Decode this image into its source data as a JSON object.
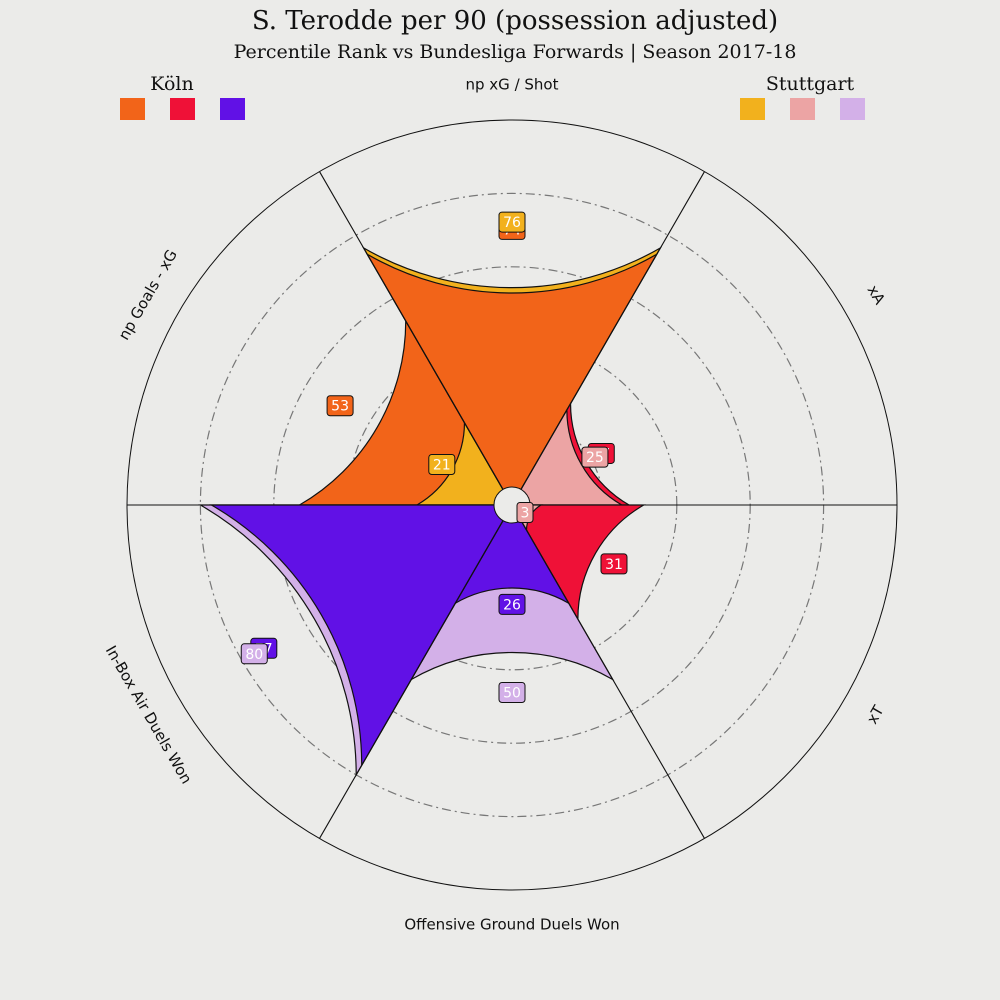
{
  "chart_data": {
    "type": "polar-area",
    "title": "S. Terodde per 90 (possession adjusted)",
    "subtitle": "Percentile Rank vs Bundesliga Forwards | Season 2017-18",
    "value_range": [
      0,
      100
    ],
    "grid": "dash-dot rings",
    "legend": [
      {
        "name": "Köln",
        "placement": "top-left",
        "colors": [
          "#f26419",
          "#ef1137",
          "#6111e6"
        ]
      },
      {
        "name": "Stuttgart",
        "placement": "top-right",
        "colors": [
          "#f2b11d",
          "#eca4a4",
          "#d3b0e8"
        ]
      }
    ],
    "params": [
      "np Goals - xG",
      "np xG / Shot",
      "xA",
      "xT",
      "Offensive Ground Duels Won",
      "In-Box Air Duels Won"
    ],
    "series": [
      {
        "name": "Köln",
        "values": [
          53,
          74,
          27,
          31,
          26,
          77
        ],
        "colors": [
          "#f26419",
          "#f26419",
          "#ef1137",
          "#ef1137",
          "#6111e6",
          "#6111e6"
        ]
      },
      {
        "name": "Stuttgart",
        "values": [
          21,
          76,
          25,
          3,
          50,
          80
        ],
        "colors": [
          "#f2b11d",
          "#f2b11d",
          "#eca4a4",
          "#eca4a4",
          "#d3b0e8",
          "#d3b0e8"
        ]
      }
    ],
    "value_labels": {
      "Köln": [
        "53",
        "74",
        "27",
        "31",
        "26",
        "77"
      ],
      "Stuttgart": [
        "21",
        "76",
        "25",
        "3",
        "50",
        "80"
      ]
    }
  }
}
